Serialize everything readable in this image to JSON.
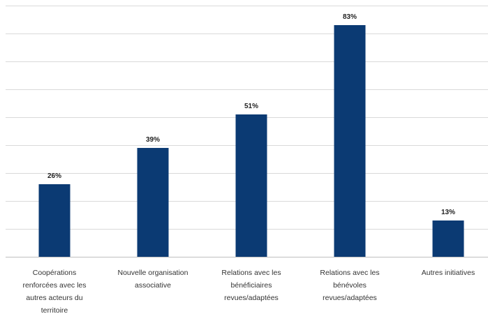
{
  "chart_data": {
    "type": "bar",
    "title": "",
    "xlabel": "",
    "ylabel": "",
    "ylim": [
      0,
      90
    ],
    "grid": true,
    "legend": "none",
    "colors": {
      "bar": "#0b3a73",
      "grid": "#d9d9d9"
    },
    "categories": [
      [
        "Coopérations",
        "renforcées avec les",
        "autres acteurs du",
        "territoire"
      ],
      [
        "Nouvelle organisation",
        "associative"
      ],
      [
        "Relations avec les",
        "bénéficiaires",
        "revues/adaptées"
      ],
      [
        "Relations avec les",
        "bénévoles",
        "revues/adaptées"
      ],
      [
        "Autres initiatives"
      ]
    ],
    "values": [
      26,
      39,
      51,
      83,
      13
    ],
    "value_labels": [
      "26%",
      "39%",
      "51%",
      "83%",
      "13%"
    ]
  }
}
